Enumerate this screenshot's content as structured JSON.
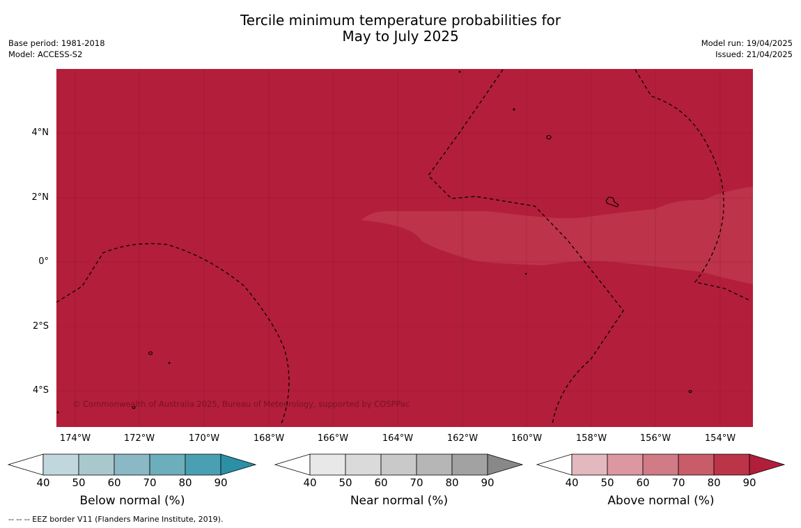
{
  "title_line1": "Tercile minimum temperature probabilities for",
  "title_line2": "May to July 2025",
  "meta_left": [
    "Base period: 1981-2018",
    "Model: ACCESS-S2"
  ],
  "meta_right": [
    "Model run: 19/04/2025",
    "Issued: 21/04/2025"
  ],
  "copyright": "© Commonwealth of Australia 2025, Bureau of Meteorology, supported by COSPPac",
  "lat_labels": [
    "4°N",
    "2°N",
    "0°",
    "2°S",
    "4°S"
  ],
  "lon_labels": [
    "174°W",
    "172°W",
    "170°W",
    "168°W",
    "166°W",
    "164°W",
    "162°W",
    "160°W",
    "158°W",
    "156°W",
    "154°W"
  ],
  "colorbars": [
    {
      "title": "Below normal (%)",
      "ticks": [
        "40",
        "50",
        "60",
        "70",
        "80",
        "90"
      ],
      "colors": [
        "#c0d7de",
        "#a9c8ce",
        "#8bb8c5",
        "#6caebc",
        "#4aa0b2",
        "#2b8fa5"
      ]
    },
    {
      "title": "Near normal (%)",
      "ticks": [
        "40",
        "50",
        "60",
        "70",
        "80",
        "90"
      ],
      "colors": [
        "#e8e8e8",
        "#dadada",
        "#c9c9c9",
        "#b6b6b6",
        "#a2a2a2",
        "#888888"
      ]
    },
    {
      "title": "Above normal (%)",
      "ticks": [
        "40",
        "50",
        "60",
        "70",
        "80",
        "90"
      ],
      "colors": [
        "#e4b8bf",
        "#dc97a1",
        "#d07b85",
        "#c85c69",
        "#bc3448",
        "#b01e3a"
      ]
    }
  ],
  "map_colors": {
    "above_90": "#b31e3a",
    "above_80": "#bd3349",
    "gridline": "#7a1a28"
  },
  "footnote": "--  --  -- EEZ border V11 (Flanders Marine Institute, 2019)."
}
